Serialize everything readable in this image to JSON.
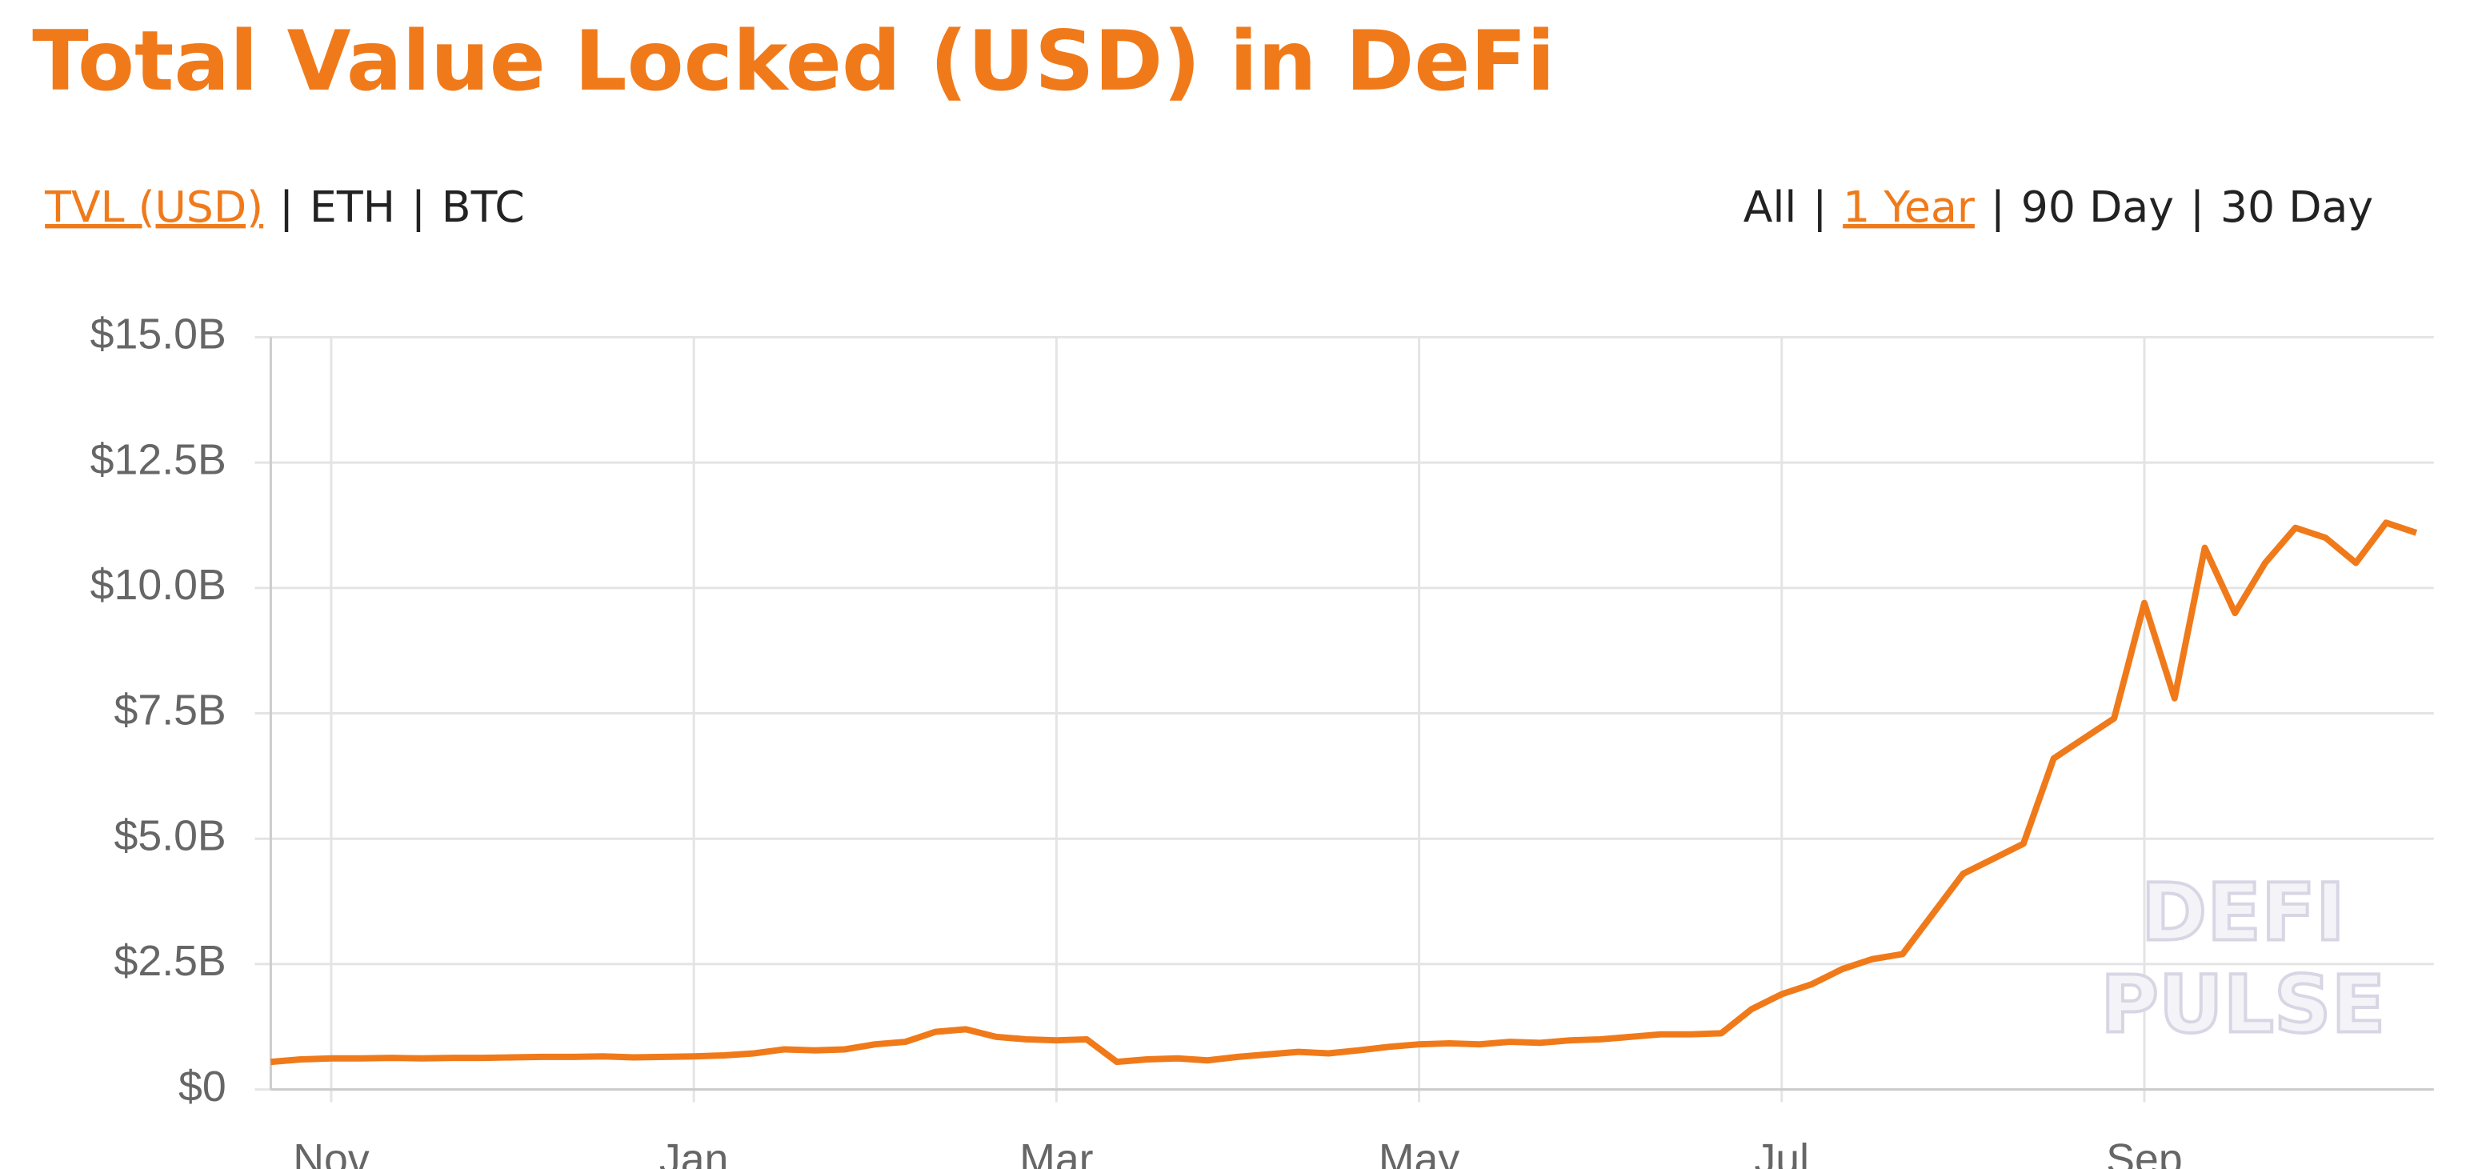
{
  "chart_data": {
    "type": "line",
    "title": "Total Value Locked (USD) in DeFi",
    "controls_left": [
      "TVL (USD)",
      "ETH",
      "BTC"
    ],
    "controls_right": [
      "All",
      "1 Year",
      "90 Day",
      "30 Day"
    ],
    "separator": "|",
    "watermark": [
      "DEFI",
      "PULSE"
    ],
    "categories": [
      null,
      null,
      "Nov",
      null,
      null,
      null,
      null,
      null,
      null,
      null,
      null,
      null,
      null,
      null,
      "Jan",
      null,
      null,
      null,
      null,
      null,
      null,
      null,
      null,
      null,
      null,
      null,
      "Mar",
      null,
      null,
      null,
      null,
      null,
      null,
      null,
      null,
      null,
      null,
      null,
      "May",
      null,
      null,
      null,
      null,
      null,
      null,
      null,
      null,
      null,
      null,
      null,
      "Jul",
      null,
      null,
      null,
      null,
      null,
      null,
      null,
      null,
      null,
      null,
      null,
      "Sep",
      null,
      null,
      null,
      null,
      null,
      null,
      null,
      null,
      null
    ],
    "series": [
      {
        "name": "TVL (USD)",
        "color": "#f07a1a",
        "values": [
          550000000.0,
          600000000.0,
          620000000.0,
          620000000.0,
          630000000.0,
          620000000.0,
          630000000.0,
          630000000.0,
          640000000.0,
          650000000.0,
          650000000.0,
          660000000.0,
          640000000.0,
          650000000.0,
          660000000.0,
          680000000.0,
          720000000.0,
          800000000.0,
          780000000.0,
          800000000.0,
          900000000.0,
          950000000.0,
          1150000000.0,
          1200000000.0,
          1050000000.0,
          1000000000.0,
          980000000.0,
          1000000000.0,
          550000000.0,
          600000000.0,
          620000000.0,
          580000000.0,
          650000000.0,
          700000000.0,
          750000000.0,
          720000000.0,
          780000000.0,
          850000000.0,
          900000000.0,
          920000000.0,
          900000000.0,
          950000000.0,
          930000000.0,
          980000000.0,
          1000000000.0,
          1050000000.0,
          1100000000.0,
          1100000000.0,
          1120000000.0,
          1600000000.0,
          1900000000.0,
          2100000000.0,
          2400000000.0,
          2600000000.0,
          2700000000.0,
          3500000000.0,
          4300000000.0,
          4600000000.0,
          4900000000.0,
          6600000000.0,
          7000000000.0,
          7400000000.0,
          9700000000.0,
          7800000000.0,
          10800000000.0,
          9500000000.0,
          10500000000.0,
          11200000000.0,
          11000000000.0,
          10500000000.0,
          11300000000.0,
          11100000000.0
        ]
      }
    ],
    "ylim": [
      0,
      15000000000.0
    ],
    "yticks": [
      {
        "value": 0,
        "label": "$0"
      },
      {
        "value": 2500000000.0,
        "label": "$2.5B"
      },
      {
        "value": 5000000000.0,
        "label": "$5.0B"
      },
      {
        "value": 7500000000.0,
        "label": "$7.5B"
      },
      {
        "value": 10000000000.0,
        "label": "$10.0B"
      },
      {
        "value": 12500000000.0,
        "label": "$12.5B"
      },
      {
        "value": 15000000000.0,
        "label": "$15.0B"
      }
    ],
    "grid": true
  }
}
